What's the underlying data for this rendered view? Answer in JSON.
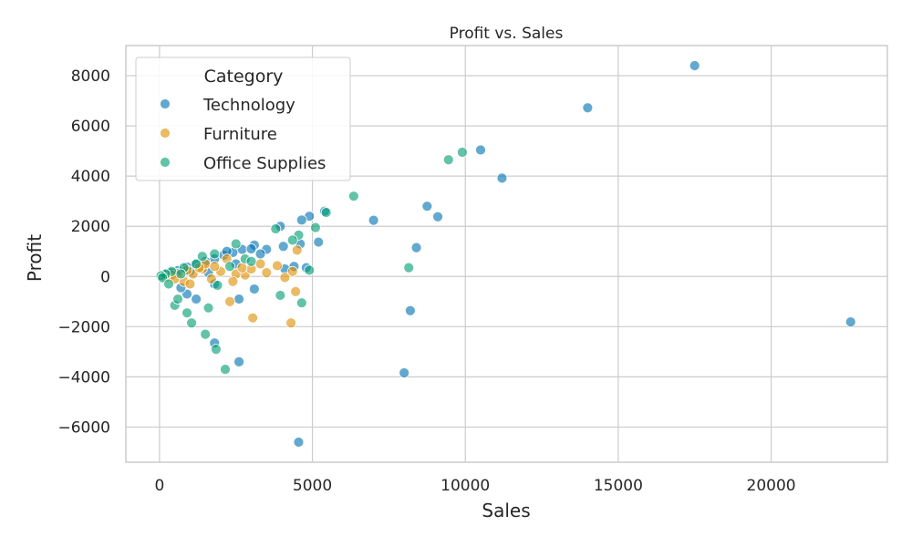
{
  "chart_data": {
    "type": "scatter",
    "title": "Profit vs. Sales",
    "xlabel": "Sales",
    "ylabel": "Profit",
    "xlim": [
      -1100,
      23800
    ],
    "ylim": [
      -7400,
      9200
    ],
    "xticks": [
      0,
      5000,
      10000,
      15000,
      20000
    ],
    "yticks": [
      -6000,
      -4000,
      -2000,
      0,
      2000,
      4000,
      6000,
      8000
    ],
    "grid": true,
    "legend": {
      "title": "Category",
      "placement": "top-left",
      "entries": [
        "Technology",
        "Furniture",
        "Office Supplies"
      ]
    },
    "series": [
      {
        "name": "Technology",
        "color": "#0173b2",
        "points": [
          [
            17500,
            8400
          ],
          [
            14000,
            6720
          ],
          [
            10500,
            5040
          ],
          [
            11200,
            3920
          ],
          [
            8750,
            2800
          ],
          [
            9100,
            2380
          ],
          [
            7000,
            2240
          ],
          [
            8400,
            1150
          ],
          [
            22600,
            -1810
          ],
          [
            8200,
            -1360
          ],
          [
            8000,
            -3840
          ],
          [
            4550,
            -6600
          ],
          [
            2600,
            -3400
          ],
          [
            1800,
            -2650
          ],
          [
            4900,
            2400
          ],
          [
            4650,
            2250
          ],
          [
            5400,
            2600
          ],
          [
            3950,
            2000
          ],
          [
            5200,
            1370
          ],
          [
            4050,
            1200
          ],
          [
            4600,
            1300
          ],
          [
            4400,
            400
          ],
          [
            3500,
            1080
          ],
          [
            3100,
            1250
          ],
          [
            2700,
            1080
          ],
          [
            2400,
            960
          ],
          [
            2100,
            850
          ],
          [
            1800,
            700
          ],
          [
            1500,
            600
          ],
          [
            1200,
            480
          ],
          [
            900,
            380
          ],
          [
            600,
            240
          ],
          [
            300,
            120
          ],
          [
            150,
            60
          ],
          [
            3000,
            1100
          ],
          [
            2500,
            500
          ],
          [
            3100,
            -500
          ],
          [
            2600,
            -900
          ],
          [
            1800,
            -300
          ],
          [
            1200,
            -900
          ],
          [
            900,
            -700
          ],
          [
            700,
            -450
          ],
          [
            400,
            150
          ],
          [
            200,
            80
          ],
          [
            1000,
            200
          ],
          [
            2200,
            1000
          ],
          [
            3300,
            900
          ],
          [
            4100,
            300
          ],
          [
            4800,
            350
          ],
          [
            1600,
            150
          ]
        ]
      },
      {
        "name": "Furniture",
        "color": "#de8f05",
        "points": [
          [
            4300,
            -1850
          ],
          [
            3050,
            -1650
          ],
          [
            4450,
            -600
          ],
          [
            4350,
            200
          ],
          [
            3850,
            430
          ],
          [
            4500,
            1050
          ],
          [
            4100,
            -40
          ],
          [
            2300,
            -1000
          ],
          [
            2800,
            60
          ],
          [
            3500,
            150
          ],
          [
            3000,
            300
          ],
          [
            2500,
            100
          ],
          [
            2000,
            200
          ],
          [
            1700,
            -100
          ],
          [
            1400,
            300
          ],
          [
            1100,
            100
          ],
          [
            800,
            -200
          ],
          [
            600,
            120
          ],
          [
            400,
            60
          ],
          [
            200,
            -40
          ],
          [
            1000,
            -300
          ],
          [
            1500,
            500
          ],
          [
            2200,
            700
          ],
          [
            2700,
            350
          ],
          [
            1300,
            350
          ],
          [
            900,
            250
          ],
          [
            500,
            -100
          ],
          [
            1800,
            400
          ],
          [
            2400,
            -200
          ],
          [
            3300,
            500
          ]
        ]
      },
      {
        "name": "Office Supplies",
        "color": "#029e73",
        "points": [
          [
            9900,
            4950
          ],
          [
            9450,
            4650
          ],
          [
            6350,
            3200
          ],
          [
            5450,
            2550
          ],
          [
            5100,
            1950
          ],
          [
            4550,
            1650
          ],
          [
            3800,
            1900
          ],
          [
            4350,
            1450
          ],
          [
            4900,
            250
          ],
          [
            8150,
            350
          ],
          [
            4650,
            -1050
          ],
          [
            3950,
            -750
          ],
          [
            2150,
            -3700
          ],
          [
            1850,
            -2900
          ],
          [
            1500,
            -2300
          ],
          [
            1050,
            -1850
          ],
          [
            900,
            -1450
          ],
          [
            500,
            -1150
          ],
          [
            1600,
            -1250
          ],
          [
            2500,
            1300
          ],
          [
            2800,
            700
          ],
          [
            1800,
            900
          ],
          [
            1200,
            500
          ],
          [
            800,
            350
          ],
          [
            400,
            200
          ],
          [
            200,
            100
          ],
          [
            50,
            30
          ],
          [
            100,
            -50
          ],
          [
            300,
            -300
          ],
          [
            600,
            -900
          ],
          [
            1900,
            -350
          ],
          [
            2300,
            400
          ],
          [
            1400,
            800
          ],
          [
            700,
            100
          ],
          [
            3000,
            600
          ]
        ]
      }
    ]
  }
}
